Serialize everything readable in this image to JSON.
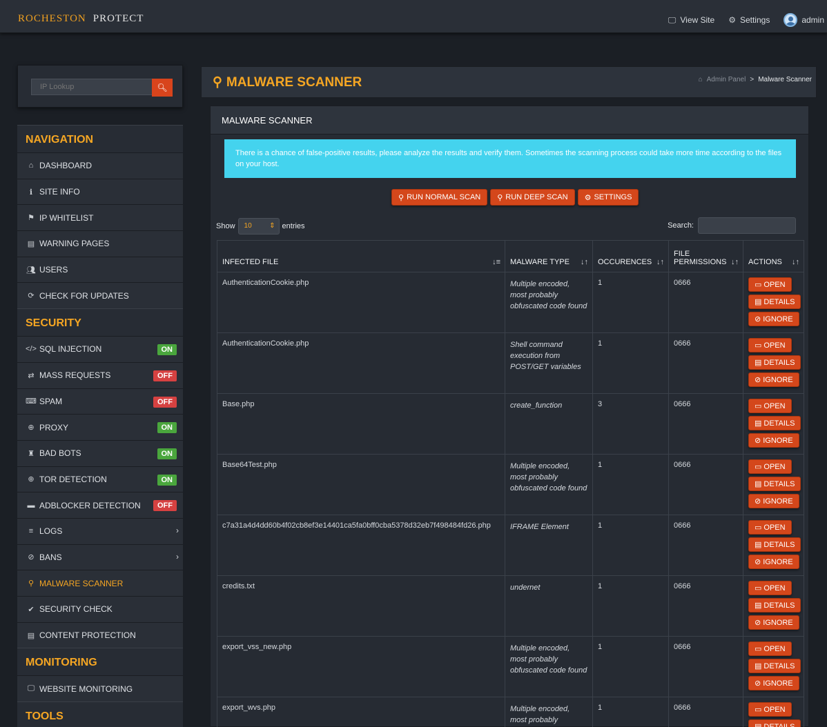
{
  "header": {
    "brand_left": "ROCHESTON",
    "brand_right": "PROTECT",
    "view_site": "View Site",
    "settings": "Settings",
    "user": "admin"
  },
  "sidebar": {
    "lookup_placeholder": "IP Lookup",
    "sections": {
      "navigation": "NAVIGATION",
      "security": "SECURITY",
      "monitoring": "MONITORING",
      "tools": "TOOLS"
    },
    "nav": [
      "DASHBOARD",
      "SITE INFO",
      "IP WHITELIST",
      "WARNING PAGES",
      "USERS",
      "CHECK FOR UPDATES"
    ],
    "security": [
      {
        "label": "SQL INJECTION",
        "status": "ON"
      },
      {
        "label": "MASS REQUESTS",
        "status": "OFF"
      },
      {
        "label": "SPAM",
        "status": "OFF"
      },
      {
        "label": "PROXY",
        "status": "ON"
      },
      {
        "label": "BAD BOTS",
        "status": "ON"
      },
      {
        "label": "TOR DETECTION",
        "status": "ON"
      },
      {
        "label": "ADBLOCKER DETECTION",
        "status": "OFF"
      },
      {
        "label": "LOGS"
      },
      {
        "label": "BANS"
      },
      {
        "label": "MALWARE SCANNER"
      },
      {
        "label": "SECURITY CHECK"
      },
      {
        "label": "CONTENT PROTECTION"
      }
    ],
    "monitoring": [
      "WEBSITE MONITORING"
    ]
  },
  "page": {
    "title": "MALWARE SCANNER",
    "breadcrumb_root": "Admin Panel",
    "breadcrumb_sep": ">",
    "breadcrumb_current": "Malware Scanner"
  },
  "panel": {
    "title": "MALWARE SCANNER",
    "alert": "There is a chance of false-positive results, please analyze the results and verify them. Sometimes the scanning process could take more time according to the files on your host.",
    "buttons": {
      "normal": "RUN NORMAL SCAN",
      "deep": "RUN DEEP SCAN",
      "settings": "SETTINGS"
    },
    "show": "Show",
    "entries_value": "10",
    "entries": "entries",
    "search": "Search:",
    "columns": [
      "INFECTED FILE",
      "MALWARE TYPE",
      "OCCURENCES",
      "FILE PERMISSIONS",
      "ACTIONS"
    ],
    "actions": {
      "open": "OPEN",
      "details": "DETAILS",
      "ignore": "IGNORE"
    },
    "rows": [
      {
        "file": "AuthenticationCookie.php",
        "type": "Multiple encoded, most probably obfuscated code found",
        "count": "1",
        "perm": "0666"
      },
      {
        "file": "AuthenticationCookie.php",
        "type": "Shell command execution from POST/GET variables",
        "count": "1",
        "perm": "0666"
      },
      {
        "file": "Base.php",
        "type": "create_function",
        "count": "3",
        "perm": "0666"
      },
      {
        "file": "Base64Test.php",
        "type": "Multiple encoded, most probably obfuscated code found",
        "count": "1",
        "perm": "0666"
      },
      {
        "file": "c7a31a4d4dd60b4f02cb8ef3e14401ca5fa0bff0cba5378d32eb7f498484fd26.php",
        "type": "IFRAME Element",
        "count": "1",
        "perm": "0666"
      },
      {
        "file": "credits.txt",
        "type": "undernet",
        "count": "1",
        "perm": "0666"
      },
      {
        "file": "export_vss_new.php",
        "type": "Multiple encoded, most probably obfuscated code found",
        "count": "1",
        "perm": "0666"
      },
      {
        "file": "export_wvs.php",
        "type": "Multiple encoded, most probably obfuscated code found",
        "count": "1",
        "perm": "0666"
      }
    ]
  },
  "colors": {
    "accent": "#f5a623",
    "button": "#d4471b",
    "alert": "#44d3ee",
    "on": "#4aa63d",
    "off": "#d64141",
    "malware_text": "#e01b1b"
  }
}
